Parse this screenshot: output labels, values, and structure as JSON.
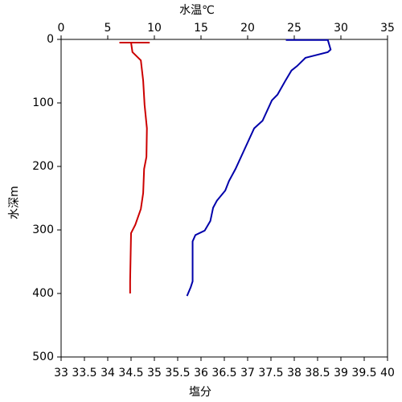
{
  "chart_data": {
    "type": "profile",
    "x_label": "塩分",
    "x_label_color": "#cc0000",
    "x2_label": "水温℃",
    "x2_label_color": "#0000aa",
    "y_label": "水深m",
    "xlim": [
      33,
      40
    ],
    "xticks": [
      33,
      33.5,
      34,
      34.5,
      35,
      35.5,
      36,
      36.5,
      37,
      37.5,
      38,
      38.5,
      39,
      39.5,
      40
    ],
    "x2lim": [
      0,
      35
    ],
    "x2ticks": [
      0,
      5,
      10,
      15,
      20,
      25,
      30,
      35
    ],
    "ylim": [
      0,
      500
    ],
    "yticks": [
      0,
      100,
      200,
      300,
      400,
      500
    ],
    "y_inverted": true,
    "series": [
      {
        "color": "#cc0000",
        "axis": "x",
        "values": [
          34.25,
          34.9,
          34.5,
          34.53,
          34.71,
          34.76,
          34.79,
          34.84,
          34.83,
          34.78,
          34.76,
          34.71,
          34.59,
          34.5,
          34.48,
          34.48
        ],
        "depth": [
          5,
          5,
          5,
          20,
          33,
          65,
          103,
          140,
          185,
          204,
          242,
          267,
          292,
          305,
          381,
          400
        ]
      },
      {
        "color": "#0000aa",
        "axis": "x2",
        "values": [
          24.1,
          28.6,
          28.9,
          28.6,
          26.2,
          25.3,
          24.7,
          24.05,
          23.2,
          22.6,
          21.6,
          20.7,
          19.7,
          18.7,
          18.0,
          17.6,
          16.7,
          16.3,
          16.0,
          15.4,
          14.4,
          14.1,
          14.1,
          13.9,
          13.5
        ],
        "depth": [
          1,
          1,
          16,
          20,
          29,
          42,
          49,
          65,
          87,
          96,
          128,
          140,
          172,
          204,
          223,
          238,
          254,
          265,
          286,
          301,
          308,
          318,
          381,
          390,
          404
        ]
      }
    ]
  }
}
